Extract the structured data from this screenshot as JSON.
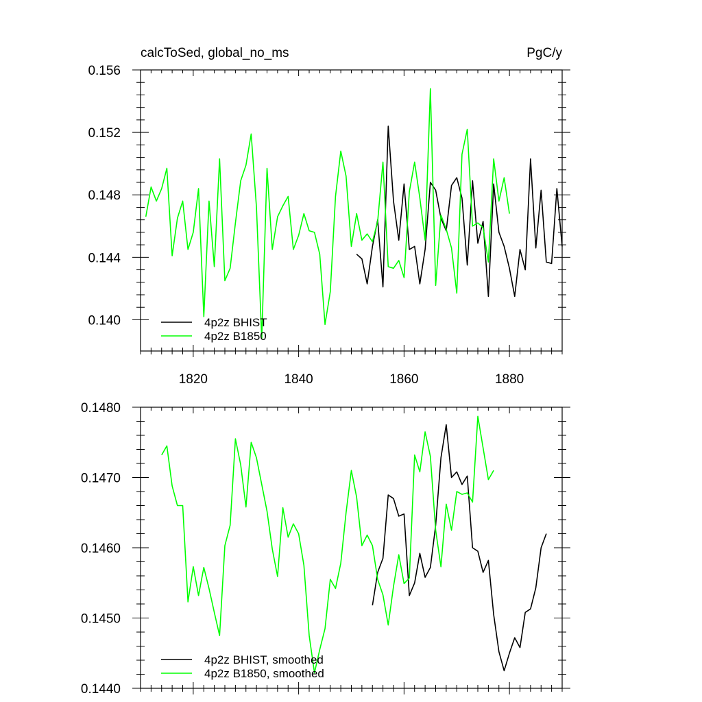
{
  "chart_data": [
    {
      "type": "line",
      "title_left": "calcToSed, global_no_ms",
      "title_right": "PgC/y",
      "xlim": [
        1810,
        1890
      ],
      "ylim": [
        0.138,
        0.156
      ],
      "x_ticks": [
        1820,
        1840,
        1860,
        1880
      ],
      "x_tick_labels": [
        "1820",
        "1840",
        "1860",
        "1880"
      ],
      "y_ticks": [
        0.14,
        0.144,
        0.148,
        0.152,
        0.156
      ],
      "y_tick_labels": [
        "0.140",
        "0.144",
        "0.148",
        "0.152",
        "0.156"
      ],
      "legend": [
        "4p2z BHIST",
        "4p2z B1850"
      ],
      "legend_position": "bottom-left",
      "series": [
        {
          "name": "4p2z BHIST",
          "color": "#000000",
          "x": [
            1851,
            1852,
            1853,
            1854,
            1855,
            1856,
            1857,
            1858,
            1859,
            1860,
            1861,
            1862,
            1863,
            1864,
            1865,
            1866,
            1867,
            1868,
            1869,
            1870,
            1871,
            1872,
            1873,
            1874,
            1875,
            1876,
            1877,
            1878,
            1879,
            1880,
            1881,
            1882,
            1883,
            1884,
            1885,
            1886,
            1887,
            1888,
            1889,
            1890
          ],
          "y": [
            0.1442,
            0.1439,
            0.1423,
            0.1447,
            0.1464,
            0.1421,
            0.1524,
            0.1476,
            0.1451,
            0.1487,
            0.1445,
            0.1447,
            0.1423,
            0.1445,
            0.1488,
            0.1483,
            0.1465,
            0.1457,
            0.1486,
            0.1491,
            0.1478,
            0.1435,
            0.1489,
            0.1449,
            0.1463,
            0.1415,
            0.1487,
            0.1456,
            0.1447,
            0.1433,
            0.1415,
            0.1445,
            0.1432,
            0.1503,
            0.1446,
            0.1483,
            0.1437,
            0.1436,
            0.1484,
            0.1447
          ]
        },
        {
          "name": "4p2z B1850",
          "color": "#00ff00",
          "x": [
            1811,
            1812,
            1813,
            1814,
            1815,
            1816,
            1817,
            1818,
            1819,
            1820,
            1821,
            1822,
            1823,
            1824,
            1825,
            1826,
            1827,
            1828,
            1829,
            1830,
            1831,
            1832,
            1833,
            1834,
            1835,
            1836,
            1837,
            1838,
            1839,
            1840,
            1841,
            1842,
            1843,
            1844,
            1845,
            1846,
            1847,
            1848,
            1849,
            1850,
            1851,
            1852,
            1853,
            1854,
            1855,
            1856,
            1857,
            1858,
            1859,
            1860,
            1861,
            1862,
            1863,
            1864,
            1865,
            1866,
            1867,
            1868,
            1869,
            1870,
            1871,
            1872,
            1873,
            1874,
            1875,
            1876,
            1877,
            1878,
            1879,
            1880
          ],
          "y": [
            0.1466,
            0.1485,
            0.1476,
            0.1484,
            0.1497,
            0.1441,
            0.1465,
            0.1476,
            0.1445,
            0.1456,
            0.1484,
            0.1402,
            0.1476,
            0.1434,
            0.1503,
            0.1425,
            0.1433,
            0.1462,
            0.1489,
            0.1499,
            0.1519,
            0.1472,
            0.1388,
            0.1497,
            0.1445,
            0.1466,
            0.1473,
            0.1479,
            0.1445,
            0.1454,
            0.1468,
            0.1457,
            0.1456,
            0.1442,
            0.1397,
            0.1418,
            0.1479,
            0.1508,
            0.1492,
            0.1447,
            0.1468,
            0.1451,
            0.1455,
            0.145,
            0.1463,
            0.1501,
            0.1434,
            0.1433,
            0.1438,
            0.1427,
            0.1482,
            0.1501,
            0.1478,
            0.1451,
            0.1548,
            0.1422,
            0.1467,
            0.1458,
            0.1446,
            0.1417,
            0.1506,
            0.1522,
            0.146,
            0.1462,
            0.1459,
            0.1437,
            0.1503,
            0.1476,
            0.1491,
            0.1468
          ]
        }
      ]
    },
    {
      "type": "line",
      "xlim": [
        1810,
        1890
      ],
      "ylim": [
        0.144,
        0.148
      ],
      "x_ticks": [
        1820,
        1840,
        1860,
        1880
      ],
      "y_ticks": [
        0.144,
        0.145,
        0.146,
        0.147,
        0.148
      ],
      "y_tick_labels": [
        "0.1440",
        "0.1450",
        "0.1460",
        "0.1470",
        "0.1480"
      ],
      "legend": [
        "4p2z BHIST, smoothed",
        "4p2z B1850, smoothed"
      ],
      "legend_position": "bottom-left",
      "series": [
        {
          "name": "4p2z BHIST, smoothed",
          "color": "#000000",
          "x": [
            1854,
            1855,
            1856,
            1857,
            1858,
            1859,
            1860,
            1861,
            1862,
            1863,
            1864,
            1865,
            1866,
            1867,
            1868,
            1869,
            1870,
            1871,
            1872,
            1873,
            1874,
            1875,
            1876,
            1877,
            1878,
            1879,
            1880,
            1881,
            1882,
            1883,
            1884,
            1885,
            1886,
            1887
          ],
          "y": [
            0.14518,
            0.14565,
            0.14585,
            0.14675,
            0.1467,
            0.14645,
            0.14648,
            0.14532,
            0.1455,
            0.14592,
            0.14558,
            0.14572,
            0.14632,
            0.14728,
            0.14775,
            0.147,
            0.14708,
            0.1469,
            0.14702,
            0.146,
            0.14595,
            0.14565,
            0.14582,
            0.14505,
            0.14452,
            0.14425,
            0.1445,
            0.14472,
            0.14458,
            0.14508,
            0.14513,
            0.14543,
            0.146,
            0.1462
          ]
        },
        {
          "name": "4p2z B1850, smoothed",
          "color": "#00ff00",
          "x": [
            1814,
            1815,
            1816,
            1817,
            1818,
            1819,
            1820,
            1821,
            1822,
            1823,
            1824,
            1825,
            1826,
            1827,
            1828,
            1829,
            1830,
            1831,
            1832,
            1833,
            1834,
            1835,
            1836,
            1837,
            1838,
            1839,
            1840,
            1841,
            1842,
            1843,
            1844,
            1845,
            1846,
            1847,
            1848,
            1849,
            1850,
            1851,
            1852,
            1853,
            1854,
            1855,
            1856,
            1857,
            1858,
            1859,
            1860,
            1861,
            1862,
            1863,
            1864,
            1865,
            1866,
            1867,
            1868,
            1869,
            1870,
            1871,
            1872,
            1873,
            1874,
            1875,
            1876,
            1877
          ],
          "y": [
            0.14732,
            0.14745,
            0.14688,
            0.1466,
            0.1466,
            0.14523,
            0.14573,
            0.14532,
            0.14572,
            0.14542,
            0.14508,
            0.14475,
            0.14603,
            0.14632,
            0.14755,
            0.14718,
            0.14658,
            0.1475,
            0.14728,
            0.1469,
            0.14652,
            0.14598,
            0.14559,
            0.14657,
            0.14615,
            0.14634,
            0.1462,
            0.14575,
            0.14475,
            0.14422,
            0.14455,
            0.14485,
            0.14555,
            0.14542,
            0.14578,
            0.1465,
            0.1471,
            0.14672,
            0.14603,
            0.14618,
            0.14603,
            0.14555,
            0.14533,
            0.1449,
            0.14545,
            0.1459,
            0.14549,
            0.14557,
            0.14732,
            0.14708,
            0.14765,
            0.1473,
            0.14625,
            0.14573,
            0.14662,
            0.14625,
            0.1468,
            0.14676,
            0.14678,
            0.14665,
            0.14787,
            0.14742,
            0.14697,
            0.1471
          ]
        }
      ]
    }
  ]
}
